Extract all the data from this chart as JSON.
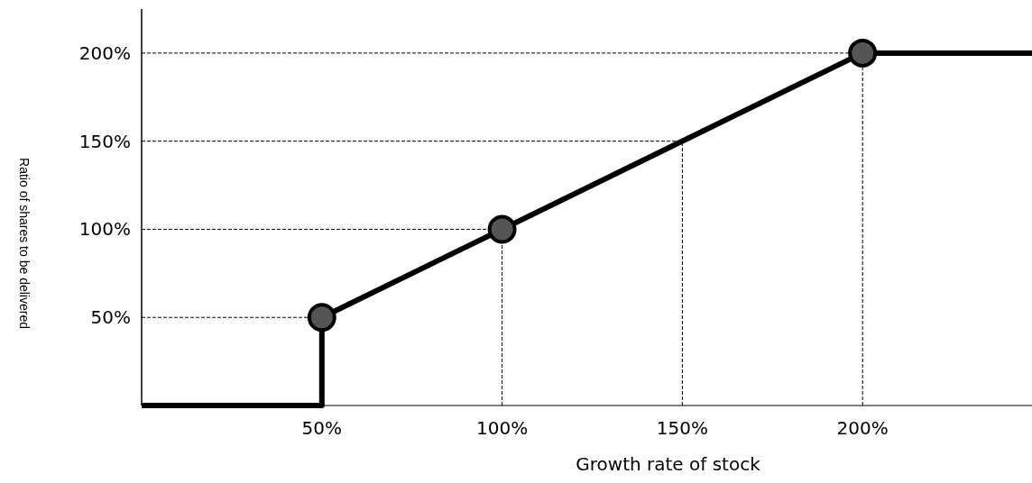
{
  "chart_data": {
    "type": "line",
    "xlabel": "Growth rate of stock",
    "ylabel": "Ratio of shares to be delivered",
    "xlim": [
      0,
      247
    ],
    "ylim": [
      0,
      225
    ],
    "xticks": [
      {
        "value": 50,
        "label": "50%"
      },
      {
        "value": 100,
        "label": "100%"
      },
      {
        "value": 150,
        "label": "150%"
      },
      {
        "value": 200,
        "label": "200%"
      }
    ],
    "yticks": [
      {
        "value": 50,
        "label": "50%"
      },
      {
        "value": 100,
        "label": "100%"
      },
      {
        "value": 150,
        "label": "150%"
      },
      {
        "value": 200,
        "label": "200%"
      }
    ],
    "ref_lines": [
      {
        "axis": "y",
        "value": 50,
        "color": "#000000",
        "line_style": "dashed"
      },
      {
        "axis": "y",
        "value": 100,
        "color": "#000000",
        "line_style": "dashed"
      },
      {
        "axis": "y",
        "value": 150,
        "color": "#000000",
        "line_style": "dashed"
      },
      {
        "axis": "y",
        "value": 200,
        "color": "#000000",
        "line_style": "dashed"
      },
      {
        "axis": "x",
        "value": 100,
        "color": "#000000",
        "line_style": "dashed"
      },
      {
        "axis": "x",
        "value": 150,
        "color": "#000000",
        "line_style": "dashed"
      },
      {
        "axis": "x",
        "value": 200,
        "color": "#000000",
        "line_style": "dashed"
      }
    ],
    "series": [
      {
        "color": "#000000",
        "x": [
          0,
          50,
          50,
          100,
          200,
          247
        ],
        "values": [
          0,
          0,
          50,
          100,
          200,
          200
        ]
      },
      {
        "type": "scatter",
        "color": "#555555",
        "marker": "circle",
        "x": [
          50,
          100,
          200
        ],
        "values": [
          50,
          100,
          200
        ]
      }
    ]
  }
}
